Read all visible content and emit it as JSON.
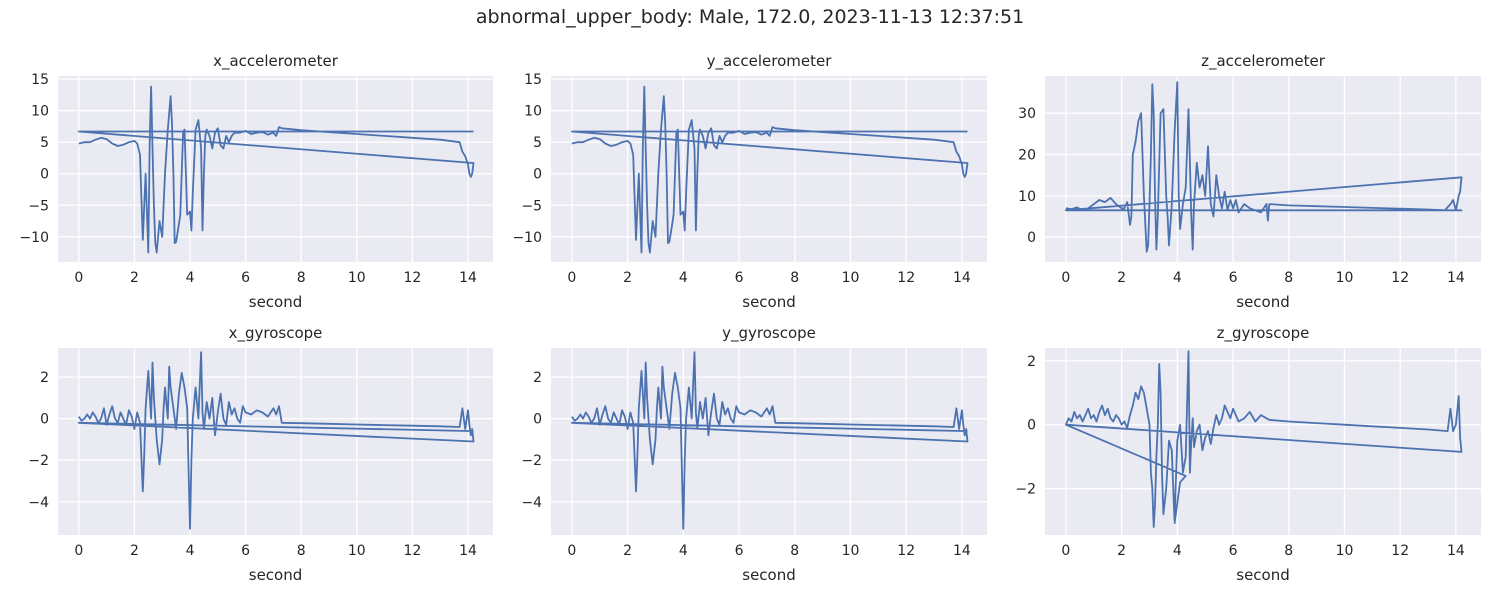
{
  "figure": {
    "title": "abnormal_upper_body: Male, 172.0, 2023-11-13 12:37:51",
    "background": "#ffffff",
    "panel_background": "#EAEAF2",
    "grid_color": "#ffffff",
    "line_color": "#4C72B0"
  },
  "chart_data": [
    {
      "type": "line",
      "title": "x_accelerometer",
      "xlabel": "second",
      "ylabel": "",
      "xlim": [
        -0.75,
        14.9
      ],
      "ylim": [
        -14,
        15.5
      ],
      "xticks": [
        0,
        2,
        4,
        6,
        8,
        10,
        12,
        14
      ],
      "yticks": [
        -10,
        -5,
        0,
        5,
        10,
        15
      ],
      "grid": true,
      "x": [
        0.0,
        0.2,
        0.4,
        0.6,
        0.8,
        1.0,
        1.2,
        1.4,
        1.6,
        1.8,
        2.0,
        2.1,
        2.2,
        2.3,
        2.4,
        2.5,
        2.55,
        2.6,
        2.65,
        2.7,
        2.75,
        2.8,
        2.9,
        3.0,
        3.1,
        3.2,
        3.3,
        3.35,
        3.4,
        3.45,
        3.5,
        3.6,
        3.65,
        3.7,
        3.75,
        3.8,
        3.9,
        4.0,
        4.05,
        4.1,
        4.2,
        4.3,
        4.4,
        4.45,
        4.5,
        4.55,
        4.6,
        4.7,
        4.8,
        4.9,
        5.0,
        5.1,
        5.2,
        5.3,
        5.4,
        5.5,
        5.6,
        5.8,
        6.0,
        6.2,
        6.4,
        6.6,
        6.8,
        7.0,
        7.1,
        7.2,
        7.3,
        8.0,
        9.0,
        10.0,
        11.0,
        12.0,
        13.0,
        13.7,
        13.8,
        13.9,
        14.0,
        14.05,
        14.1,
        14.15,
        14.2,
        13.9,
        0.0,
        14.2
      ],
      "y": [
        4.8,
        5.0,
        5.0,
        5.4,
        5.7,
        5.5,
        4.8,
        4.4,
        4.6,
        5.0,
        5.2,
        4.8,
        3.0,
        -10.5,
        0.0,
        -12.5,
        5.0,
        13.8,
        4.0,
        -5.0,
        -11.0,
        -12.5,
        -7.5,
        -10.0,
        0.0,
        7.0,
        12.3,
        8.0,
        0.0,
        -11.0,
        -10.8,
        -8.0,
        -6.5,
        0.0,
        6.5,
        7.0,
        -6.5,
        -6.0,
        -9.0,
        -3.0,
        7.0,
        8.5,
        4.0,
        -9.0,
        0.0,
        6.0,
        7.0,
        6.0,
        4.0,
        6.5,
        7.2,
        4.5,
        4.0,
        6.0,
        5.0,
        6.0,
        6.5,
        6.5,
        6.8,
        6.3,
        6.5,
        6.6,
        6.2,
        6.5,
        6.0,
        7.4,
        7.2,
        6.9,
        6.6,
        6.3,
        6.0,
        5.7,
        5.4,
        5.0,
        3.5,
        2.8,
        1.5,
        0.0,
        -0.5,
        0.0,
        1.7,
        1.8,
        6.7,
        6.7
      ]
    },
    {
      "type": "line",
      "title": "y_accelerometer",
      "xlabel": "second",
      "ylabel": "",
      "xlim": [
        -0.75,
        14.9
      ],
      "ylim": [
        -14,
        15.5
      ],
      "xticks": [
        0,
        2,
        4,
        6,
        8,
        10,
        12,
        14
      ],
      "yticks": [
        -10,
        -5,
        0,
        5,
        10,
        15
      ],
      "grid": true,
      "x": [
        0.0,
        0.2,
        0.4,
        0.6,
        0.8,
        1.0,
        1.2,
        1.4,
        1.6,
        1.8,
        2.0,
        2.1,
        2.2,
        2.3,
        2.4,
        2.5,
        2.55,
        2.6,
        2.65,
        2.7,
        2.75,
        2.8,
        2.9,
        3.0,
        3.1,
        3.2,
        3.3,
        3.35,
        3.4,
        3.45,
        3.5,
        3.6,
        3.65,
        3.7,
        3.75,
        3.8,
        3.9,
        4.0,
        4.05,
        4.1,
        4.2,
        4.3,
        4.4,
        4.45,
        4.5,
        4.55,
        4.6,
        4.7,
        4.8,
        4.9,
        5.0,
        5.1,
        5.2,
        5.3,
        5.4,
        5.5,
        5.6,
        5.8,
        6.0,
        6.2,
        6.4,
        6.6,
        6.8,
        7.0,
        7.1,
        7.2,
        7.3,
        8.0,
        9.0,
        10.0,
        11.0,
        12.0,
        13.0,
        13.7,
        13.8,
        13.9,
        14.0,
        14.05,
        14.1,
        14.15,
        14.2,
        13.9,
        0.0,
        14.2
      ],
      "y": [
        4.8,
        5.0,
        5.0,
        5.4,
        5.7,
        5.5,
        4.8,
        4.4,
        4.6,
        5.0,
        5.2,
        4.8,
        3.0,
        -10.5,
        0.0,
        -12.5,
        5.0,
        13.8,
        4.0,
        -5.0,
        -11.0,
        -12.5,
        -7.5,
        -10.0,
        0.0,
        7.0,
        12.3,
        8.0,
        0.0,
        -11.0,
        -10.8,
        -8.0,
        -6.5,
        0.0,
        6.5,
        7.0,
        -6.5,
        -6.0,
        -9.0,
        -3.0,
        7.0,
        8.5,
        4.0,
        -9.0,
        0.0,
        6.0,
        7.0,
        6.0,
        4.0,
        6.5,
        7.2,
        4.5,
        4.0,
        6.0,
        5.0,
        6.0,
        6.5,
        6.5,
        6.8,
        6.3,
        6.5,
        6.6,
        6.2,
        6.5,
        6.0,
        7.4,
        7.2,
        6.9,
        6.6,
        6.3,
        6.0,
        5.7,
        5.4,
        5.0,
        3.5,
        2.8,
        1.5,
        0.0,
        -0.5,
        0.0,
        1.7,
        1.8,
        6.7,
        6.7
      ]
    },
    {
      "type": "line",
      "title": "z_accelerometer",
      "xlabel": "second",
      "ylabel": "",
      "xlim": [
        -0.75,
        14.9
      ],
      "ylim": [
        -6,
        39
      ],
      "xticks": [
        0,
        2,
        4,
        6,
        8,
        10,
        12,
        14
      ],
      "yticks": [
        0,
        10,
        20,
        30
      ],
      "grid": true,
      "x": [
        0.0,
        0.2,
        0.4,
        0.6,
        0.8,
        1.0,
        1.2,
        1.4,
        1.6,
        1.8,
        2.0,
        2.1,
        2.2,
        2.3,
        2.35,
        2.4,
        2.5,
        2.6,
        2.7,
        2.8,
        2.9,
        2.95,
        3.0,
        3.05,
        3.1,
        3.15,
        3.2,
        3.25,
        3.3,
        3.4,
        3.5,
        3.6,
        3.65,
        3.7,
        3.8,
        3.9,
        4.0,
        4.05,
        4.1,
        4.2,
        4.3,
        4.4,
        4.5,
        4.55,
        4.6,
        4.7,
        4.8,
        4.9,
        5.0,
        5.1,
        5.2,
        5.3,
        5.4,
        5.5,
        5.6,
        5.7,
        5.8,
        5.9,
        6.0,
        6.1,
        6.2,
        6.4,
        6.6,
        6.8,
        7.0,
        7.2,
        7.25,
        7.3,
        8.0,
        9.0,
        10.0,
        11.0,
        12.0,
        13.0,
        13.6,
        13.8,
        13.9,
        14.0,
        14.1,
        14.15,
        14.2,
        0.0,
        14.2,
        0.0
      ],
      "y": [
        7.0,
        6.8,
        7.2,
        6.5,
        7.0,
        8.0,
        9.0,
        8.5,
        9.5,
        8.0,
        7.0,
        7.0,
        8.5,
        3.0,
        5.0,
        20.0,
        23.0,
        28.0,
        30.0,
        10.0,
        -3.5,
        -2.0,
        8.0,
        20.0,
        37.0,
        30.0,
        10.0,
        -3.0,
        5.0,
        30.0,
        31.0,
        10.0,
        5.0,
        -2.0,
        8.0,
        25.0,
        37.5,
        10.0,
        2.0,
        8.0,
        12.0,
        31.0,
        5.0,
        -3.0,
        8.0,
        18.0,
        12.0,
        15.0,
        10.0,
        22.0,
        8.0,
        5.0,
        15.0,
        10.0,
        7.0,
        11.0,
        6.5,
        9.0,
        7.0,
        9.0,
        6.0,
        8.0,
        7.0,
        6.5,
        6.0,
        8.0,
        4.0,
        8.0,
        7.7,
        7.5,
        7.3,
        7.1,
        6.9,
        6.7,
        6.5,
        8.0,
        9.0,
        6.5,
        10.0,
        11.0,
        14.5,
        6.5,
        6.5,
        6.5
      ]
    },
    {
      "type": "line",
      "title": "x_gyroscope",
      "xlabel": "second",
      "ylabel": "",
      "xlim": [
        -0.75,
        14.9
      ],
      "ylim": [
        -5.6,
        3.4
      ],
      "xticks": [
        0,
        2,
        4,
        6,
        8,
        10,
        12,
        14
      ],
      "yticks": [
        -4,
        -2,
        0,
        2
      ],
      "grid": true,
      "x": [
        0.0,
        0.1,
        0.2,
        0.3,
        0.4,
        0.5,
        0.6,
        0.7,
        0.8,
        0.9,
        1.0,
        1.1,
        1.2,
        1.3,
        1.4,
        1.5,
        1.6,
        1.7,
        1.8,
        1.9,
        2.0,
        2.1,
        2.2,
        2.3,
        2.35,
        2.4,
        2.5,
        2.6,
        2.65,
        2.7,
        2.8,
        2.9,
        3.0,
        3.05,
        3.1,
        3.2,
        3.25,
        3.3,
        3.4,
        3.5,
        3.6,
        3.7,
        3.8,
        3.9,
        3.95,
        4.0,
        4.05,
        4.1,
        4.2,
        4.3,
        4.4,
        4.45,
        4.5,
        4.6,
        4.7,
        4.8,
        4.9,
        5.0,
        5.1,
        5.2,
        5.3,
        5.4,
        5.5,
        5.6,
        5.7,
        5.8,
        5.9,
        6.0,
        6.2,
        6.4,
        6.6,
        6.8,
        7.0,
        7.1,
        7.2,
        7.3,
        8.0,
        9.0,
        10.0,
        11.0,
        12.0,
        13.0,
        13.7,
        13.8,
        13.9,
        14.0,
        14.05,
        14.1,
        14.15,
        14.2,
        0.0,
        14.2
      ],
      "y": [
        0.1,
        -0.1,
        0.0,
        0.2,
        0.0,
        0.3,
        0.1,
        -0.2,
        0.0,
        0.5,
        -0.3,
        0.2,
        0.6,
        0.0,
        -0.2,
        0.3,
        0.0,
        -0.3,
        0.4,
        0.1,
        -0.5,
        0.3,
        -0.2,
        -3.5,
        -1.8,
        0.5,
        2.3,
        0.0,
        2.7,
        1.0,
        -1.0,
        -2.2,
        -1.0,
        0.5,
        1.5,
        0.0,
        2.5,
        1.5,
        0.5,
        -0.5,
        1.2,
        2.2,
        1.5,
        0.5,
        -2.5,
        -5.3,
        -2.0,
        0.0,
        1.5,
        0.0,
        3.2,
        0.3,
        -0.5,
        0.8,
        0.0,
        1.0,
        -0.8,
        0.3,
        1.2,
        0.0,
        -0.3,
        0.8,
        0.2,
        0.5,
        0.0,
        -0.2,
        0.6,
        0.3,
        0.2,
        0.4,
        0.3,
        0.1,
        0.5,
        0.2,
        0.6,
        -0.2,
        -0.22,
        -0.25,
        -0.28,
        -0.31,
        -0.34,
        -0.37,
        -0.4,
        0.5,
        -0.5,
        0.4,
        -0.3,
        -0.8,
        -0.5,
        -1.1,
        -0.2,
        -0.6
      ]
    },
    {
      "type": "line",
      "title": "y_gyroscope",
      "xlabel": "second",
      "ylabel": "",
      "xlim": [
        -0.75,
        14.9
      ],
      "ylim": [
        -5.6,
        3.4
      ],
      "xticks": [
        0,
        2,
        4,
        6,
        8,
        10,
        12,
        14
      ],
      "yticks": [
        -4,
        -2,
        0,
        2
      ],
      "grid": true,
      "x": [
        0.0,
        0.1,
        0.2,
        0.3,
        0.4,
        0.5,
        0.6,
        0.7,
        0.8,
        0.9,
        1.0,
        1.1,
        1.2,
        1.3,
        1.4,
        1.5,
        1.6,
        1.7,
        1.8,
        1.9,
        2.0,
        2.1,
        2.2,
        2.3,
        2.35,
        2.4,
        2.5,
        2.6,
        2.65,
        2.7,
        2.8,
        2.9,
        3.0,
        3.05,
        3.1,
        3.2,
        3.25,
        3.3,
        3.4,
        3.5,
        3.6,
        3.7,
        3.8,
        3.9,
        3.95,
        4.0,
        4.05,
        4.1,
        4.2,
        4.3,
        4.4,
        4.45,
        4.5,
        4.6,
        4.7,
        4.8,
        4.9,
        5.0,
        5.1,
        5.2,
        5.3,
        5.4,
        5.5,
        5.6,
        5.7,
        5.8,
        5.9,
        6.0,
        6.2,
        6.4,
        6.6,
        6.8,
        7.0,
        7.1,
        7.2,
        7.3,
        8.0,
        9.0,
        10.0,
        11.0,
        12.0,
        13.0,
        13.7,
        13.8,
        13.9,
        14.0,
        14.05,
        14.1,
        14.15,
        14.2,
        0.0,
        14.2
      ],
      "y": [
        0.1,
        -0.1,
        0.0,
        0.2,
        0.0,
        0.3,
        0.1,
        -0.2,
        0.0,
        0.5,
        -0.3,
        0.2,
        0.6,
        0.0,
        -0.2,
        0.3,
        0.0,
        -0.3,
        0.4,
        0.1,
        -0.5,
        0.3,
        -0.2,
        -3.5,
        -1.8,
        0.5,
        2.3,
        0.0,
        2.7,
        1.0,
        -1.0,
        -2.2,
        -1.0,
        0.5,
        1.5,
        0.0,
        2.5,
        1.5,
        0.5,
        -0.5,
        1.2,
        2.2,
        1.5,
        0.5,
        -2.5,
        -5.3,
        -2.0,
        0.0,
        1.5,
        0.0,
        3.2,
        0.3,
        -0.5,
        0.8,
        0.0,
        1.0,
        -0.8,
        0.3,
        1.2,
        0.0,
        -0.3,
        0.8,
        0.2,
        0.5,
        0.0,
        -0.2,
        0.6,
        0.3,
        0.2,
        0.4,
        0.3,
        0.1,
        0.5,
        0.2,
        0.6,
        -0.2,
        -0.22,
        -0.25,
        -0.28,
        -0.31,
        -0.34,
        -0.37,
        -0.4,
        0.5,
        -0.5,
        0.4,
        -0.3,
        -0.8,
        -0.5,
        -1.1,
        -0.2,
        -0.6
      ]
    },
    {
      "type": "line",
      "title": "z_gyroscope",
      "xlabel": "second",
      "ylabel": "",
      "xlim": [
        -0.75,
        14.9
      ],
      "ylim": [
        -3.45,
        2.4
      ],
      "xticks": [
        0,
        2,
        4,
        6,
        8,
        10,
        12,
        14
      ],
      "yticks": [
        -2,
        0,
        2
      ],
      "grid": true,
      "x": [
        0.0,
        0.1,
        0.2,
        0.3,
        0.4,
        0.5,
        0.6,
        0.7,
        0.8,
        0.9,
        1.0,
        1.1,
        1.2,
        1.3,
        1.4,
        1.5,
        1.6,
        1.7,
        1.8,
        1.9,
        2.0,
        2.1,
        2.2,
        2.3,
        2.4,
        2.5,
        2.6,
        2.7,
        2.8,
        2.9,
        3.0,
        3.05,
        3.1,
        3.15,
        3.2,
        3.25,
        3.3,
        3.35,
        3.4,
        3.45,
        3.5,
        3.6,
        3.7,
        3.8,
        3.9,
        4.0,
        4.1,
        4.2,
        4.3,
        4.4,
        4.45,
        4.5,
        4.55,
        4.6,
        4.7,
        4.8,
        4.9,
        5.0,
        5.1,
        5.2,
        5.3,
        5.4,
        5.5,
        5.6,
        5.7,
        5.8,
        5.9,
        6.0,
        6.1,
        6.2,
        6.4,
        6.6,
        6.8,
        7.0,
        7.2,
        7.3,
        8.0,
        9.0,
        10.0,
        11.0,
        12.0,
        13.0,
        13.7,
        13.8,
        13.9,
        14.0,
        14.1,
        14.15,
        14.2,
        0.0,
        14.2,
        0.0,
        4.3,
        4.1,
        3.9
      ],
      "y": [
        0.0,
        0.2,
        0.1,
        0.4,
        0.2,
        0.3,
        0.1,
        0.3,
        0.5,
        0.2,
        0.3,
        0.1,
        0.4,
        0.6,
        0.3,
        0.5,
        0.2,
        0.1,
        0.3,
        0.2,
        0.0,
        0.1,
        -0.1,
        0.3,
        0.6,
        1.0,
        0.8,
        1.2,
        1.0,
        0.5,
        0.0,
        -1.5,
        -2.0,
        -3.2,
        -2.5,
        -1.0,
        0.0,
        1.9,
        1.0,
        -1.5,
        -2.8,
        -2.0,
        -0.5,
        -0.8,
        -3.0,
        -0.5,
        0.0,
        -1.5,
        -1.0,
        2.3,
        -1.5,
        -0.5,
        0.2,
        -0.7,
        -0.2,
        0.0,
        -0.8,
        -0.4,
        -0.2,
        -0.6,
        -0.1,
        0.3,
        0.0,
        0.2,
        0.6,
        0.4,
        0.2,
        0.5,
        0.3,
        0.1,
        0.2,
        0.4,
        0.1,
        0.3,
        0.2,
        0.15,
        0.1,
        0.05,
        0.0,
        -0.05,
        -0.1,
        -0.15,
        -0.2,
        0.5,
        -0.2,
        0.0,
        0.9,
        -0.4,
        -0.85,
        0.0,
        -0.85,
        0.0,
        -1.6,
        -1.8,
        -3.1
      ]
    }
  ]
}
